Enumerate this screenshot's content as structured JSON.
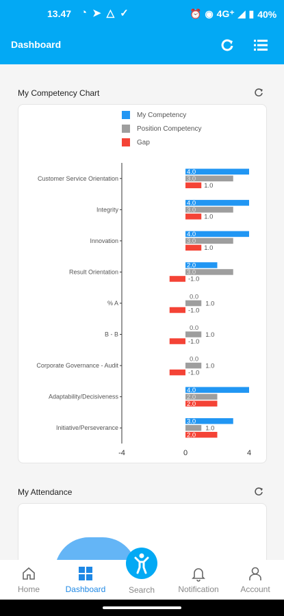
{
  "status_bar": {
    "time": "13.47",
    "network": "4G⁺",
    "battery": "40%"
  },
  "app_bar": {
    "title": "Dashboard"
  },
  "competency": {
    "title": "My Competency Chart",
    "legend": [
      {
        "name": "My Competency",
        "color": "#2196f3"
      },
      {
        "name": "Position Competency",
        "color": "#9e9e9e"
      },
      {
        "name": "Gap",
        "color": "#f44336"
      }
    ]
  },
  "chart_data": {
    "type": "bar",
    "orientation": "horizontal",
    "categories": [
      "Customer Service Orientation",
      "Integrity",
      "Innovation",
      "Result Orientation",
      "% A",
      "B - B",
      "Corporate Governance - Audit",
      "Adaptability/Decisiveness",
      "Initiative/Perseverance"
    ],
    "series": [
      {
        "name": "My Competency",
        "color": "#2196f3",
        "values": [
          4,
          4,
          4,
          2,
          0,
          0,
          0,
          4,
          3
        ],
        "labels": [
          "4.0",
          "4.0",
          "4.0",
          "2.0",
          "0.0",
          "0.0",
          "0.0",
          "4.0",
          "3.0"
        ]
      },
      {
        "name": "Position Competency",
        "color": "#9e9e9e",
        "values": [
          3,
          3,
          3,
          3,
          1,
          1,
          1,
          2,
          1
        ],
        "labels": [
          "3.0",
          "3.0",
          "3.0",
          "3.0",
          "1.0",
          "1.0",
          "1.0",
          "2.0",
          "1.0"
        ]
      },
      {
        "name": "Gap",
        "color": "#f44336",
        "values": [
          1,
          1,
          1,
          -1,
          -1,
          -1,
          -1,
          2,
          2
        ],
        "labels": [
          "1.0",
          "1.0",
          "1.0",
          "-1.0",
          "-1.0",
          "-1.0",
          "-1.0",
          "2.0",
          "2.0"
        ]
      }
    ],
    "xlim": [
      -4,
      4
    ],
    "xticks": [
      "-4",
      "0",
      "4"
    ],
    "grid": false,
    "legend": "top"
  },
  "attendance": {
    "title": "My Attendance"
  },
  "bottom_nav": [
    {
      "label": "Home"
    },
    {
      "label": "Dashboard"
    },
    {
      "label": "Search"
    },
    {
      "label": "Notification"
    },
    {
      "label": "Account"
    }
  ]
}
